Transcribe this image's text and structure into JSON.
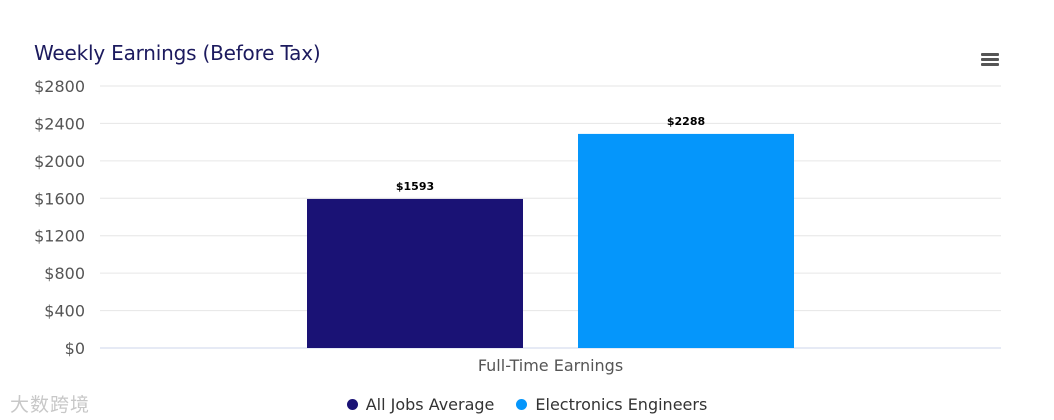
{
  "watermark": "大数跨境",
  "menu_icon": "hamburger-menu-icon",
  "colors": {
    "title": "#1c1a5e",
    "series_1": "#1a1275",
    "series_2": "#0596fb",
    "grid": "#e6e6e6",
    "axis_text": "#555555"
  },
  "chart_data": {
    "type": "bar",
    "title": "Weekly Earnings (Before Tax)",
    "categories": [
      "Full-Time Earnings"
    ],
    "series": [
      {
        "name": "All Jobs Average",
        "values": [
          1593
        ],
        "label": "$1593"
      },
      {
        "name": "Electronics Engineers",
        "values": [
          2288
        ],
        "label": "$2288"
      }
    ],
    "y_ticks": [
      "$0",
      "$400",
      "$800",
      "$1200",
      "$1600",
      "$2000",
      "$2400",
      "$2800"
    ],
    "ylim": [
      0,
      2800
    ],
    "xlabel": "",
    "ylabel": "",
    "grid": true,
    "legend": "bottom-center"
  }
}
